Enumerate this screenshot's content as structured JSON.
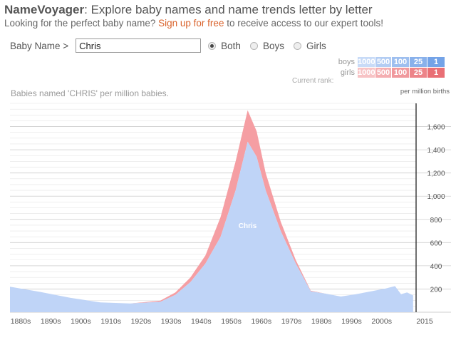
{
  "header": {
    "brand": "NameVoyager",
    "title_rest": ": Explore baby names and name trends letter by letter",
    "subtitle_pre": "Looking for the perfect baby name? ",
    "subtitle_link": "Sign up for free",
    "subtitle_post": " to receive access to our expert tools!"
  },
  "controls": {
    "name_label": "Baby Name >",
    "name_value": "Chris",
    "radios": [
      {
        "label": "Both",
        "checked": true
      },
      {
        "label": "Boys",
        "checked": false
      },
      {
        "label": "Girls",
        "checked": false
      }
    ]
  },
  "rank_legend": {
    "boys_label": "boys",
    "girls_label": "girls",
    "current_rank_label": "Current rank:",
    "tiers": [
      "1000",
      "500",
      "100",
      "25",
      "1"
    ],
    "boys_colors": [
      "#c8dbf7",
      "#b3cdf3",
      "#9ebfef",
      "#89b1eb",
      "#74a3e7"
    ],
    "girls_colors": [
      "#f7c3c5",
      "#f4aeb1",
      "#f0999d",
      "#ed8489",
      "#e96f75"
    ]
  },
  "colors": {
    "boys_fill": "#bfd4f7",
    "girls_fill": "#f59ea3",
    "grid": "#e4e4e4",
    "axis": "#222222"
  },
  "chart_data": {
    "type": "area",
    "title": "Babies named 'CHRIS' per million babies.",
    "ylabel": "per million births",
    "stacked": true,
    "x_domain": [
      1880,
      2015
    ],
    "ylim": [
      0,
      1800
    ],
    "yticks": [
      200,
      400,
      600,
      800,
      1000,
      1200,
      1400,
      1600
    ],
    "ytick_labels": [
      "200",
      "400",
      "600",
      "800",
      "1,000",
      "1,200",
      "1,400",
      "1,600"
    ],
    "xticks": [
      1880,
      1890,
      1900,
      1910,
      1920,
      1930,
      1940,
      1950,
      1960,
      1970,
      1980,
      1990,
      2000,
      2015
    ],
    "xtick_labels": [
      "1880s",
      "1890s",
      "1900s",
      "1910s",
      "1920s",
      "1930s",
      "1940s",
      "1950s",
      "1960s",
      "1970s",
      "1980s",
      "1990s",
      "2000s",
      "2015"
    ],
    "x": [
      1880,
      1890,
      1900,
      1910,
      1920,
      1930,
      1935,
      1940,
      1945,
      1950,
      1955,
      1959,
      1962,
      1965,
      1970,
      1975,
      1980,
      1985,
      1990,
      1995,
      2000,
      2005,
      2008,
      2010,
      2012,
      2014
    ],
    "series": [
      {
        "name": "Chris (boys)",
        "values": [
          220,
          175,
          125,
          85,
          75,
          90,
          150,
          260,
          420,
          650,
          1050,
          1470,
          1340,
          1050,
          700,
          420,
          180,
          160,
          135,
          155,
          180,
          205,
          225,
          155,
          170,
          145
        ]
      },
      {
        "name": "Chris (girls)",
        "values": [
          0,
          0,
          0,
          0,
          0,
          10,
          20,
          40,
          70,
          170,
          250,
          270,
          220,
          150,
          80,
          30,
          5,
          0,
          0,
          0,
          0,
          0,
          0,
          0,
          0,
          0
        ]
      }
    ],
    "annotations": [
      {
        "text": "Chris",
        "x": 1959,
        "y": 750
      }
    ]
  }
}
